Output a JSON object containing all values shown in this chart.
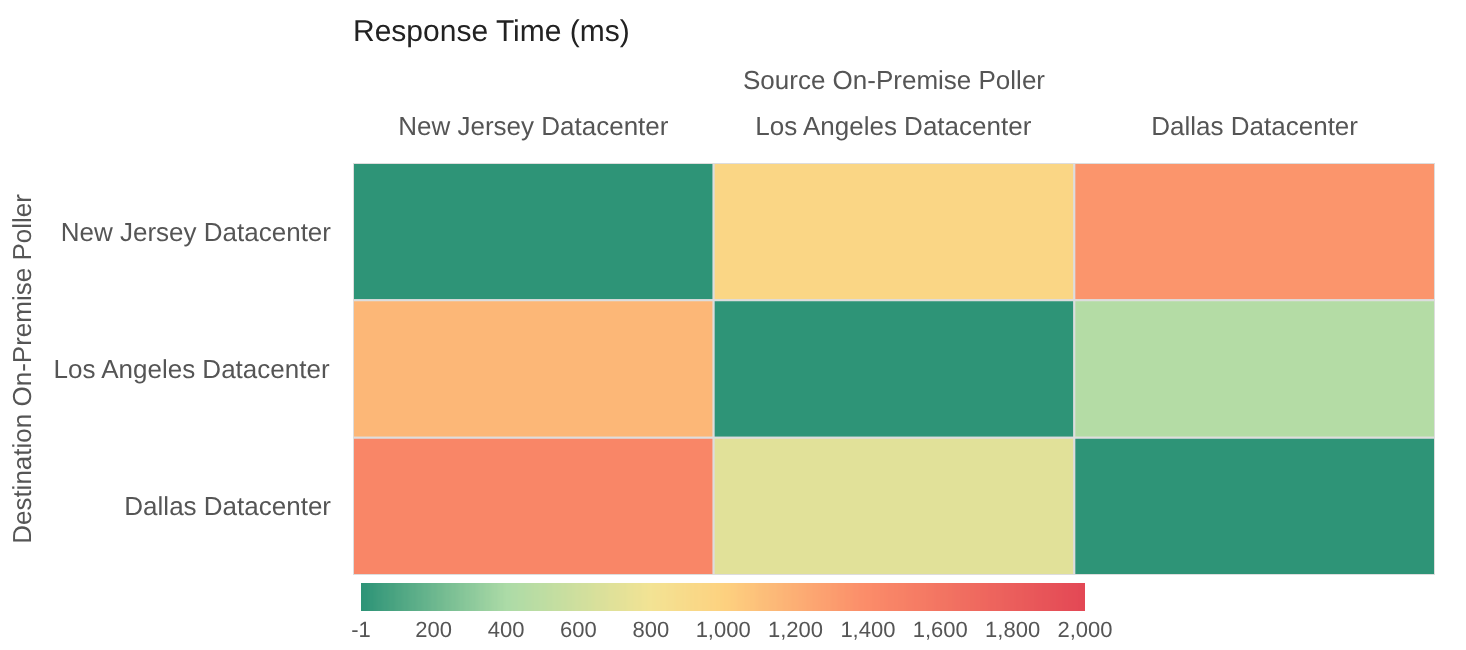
{
  "chart_data": {
    "type": "heatmap",
    "title": "Response Time (ms)",
    "xlabel": "Source On-Premise Poller",
    "ylabel": "Destination On-Premise Poller",
    "categories": [
      "New Jersey Datacenter",
      "Los Angeles Datacenter",
      "Dallas Datacenter"
    ],
    "y_categories": [
      "New Jersey Datacenter",
      "Los Angeles Datacenter",
      "Dallas Datacenter"
    ],
    "cells": [
      [
        0,
        950,
        1350
      ],
      [
        1150,
        0,
        450
      ],
      [
        1450,
        700,
        0
      ]
    ],
    "clim": [
      -1,
      2000
    ],
    "cticks": [
      -1,
      200,
      400,
      600,
      800,
      {
        "value": 1000,
        "label": "1,000"
      },
      {
        "value": 1200,
        "label": "1,200"
      },
      {
        "value": 1400,
        "label": "1,400"
      },
      {
        "value": 1600,
        "label": "1,600"
      },
      {
        "value": 1800,
        "label": "1,800"
      },
      {
        "value": 2000,
        "label": "2,000"
      }
    ]
  }
}
